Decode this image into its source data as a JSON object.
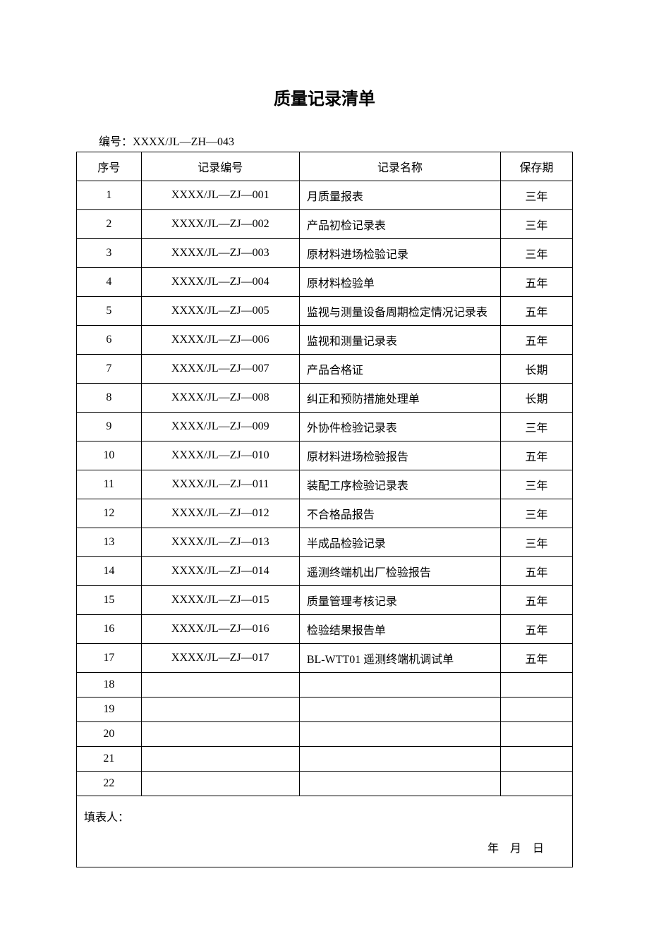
{
  "title": "质量记录清单",
  "doc_number_label": "编号：",
  "doc_number": "XXXX/JL—ZH—043",
  "columns": {
    "seq": "序号",
    "code": "记录编号",
    "name": "记录名称",
    "period": "保存期"
  },
  "rows": [
    {
      "seq": "1",
      "code": "XXXX/JL—ZJ—001",
      "name": "月质量报表",
      "period": "三年"
    },
    {
      "seq": "2",
      "code": "XXXX/JL—ZJ—002",
      "name": "产品初检记录表",
      "period": "三年"
    },
    {
      "seq": "3",
      "code": "XXXX/JL—ZJ—003",
      "name": "原材料进场检验记录",
      "period": "三年"
    },
    {
      "seq": "4",
      "code": "XXXX/JL—ZJ—004",
      "name": "原材料检验单",
      "period": "五年"
    },
    {
      "seq": "5",
      "code": "XXXX/JL—ZJ—005",
      "name": "监视与测量设备周期检定情况记录表",
      "period": "五年"
    },
    {
      "seq": "6",
      "code": "XXXX/JL—ZJ—006",
      "name": "监视和测量记录表",
      "period": "五年"
    },
    {
      "seq": "7",
      "code": "XXXX/JL—ZJ—007",
      "name": "产品合格证",
      "period": "长期"
    },
    {
      "seq": "8",
      "code": "XXXX/JL—ZJ—008",
      "name": "纠正和预防措施处理单",
      "period": "长期"
    },
    {
      "seq": "9",
      "code": "XXXX/JL—ZJ—009",
      "name": "外协件检验记录表",
      "period": "三年"
    },
    {
      "seq": "10",
      "code": "XXXX/JL—ZJ—010",
      "name": "原材料进场检验报告",
      "period": "五年"
    },
    {
      "seq": "11",
      "code": "XXXX/JL—ZJ—011",
      "name": "装配工序检验记录表",
      "period": "三年"
    },
    {
      "seq": "12",
      "code": "XXXX/JL—ZJ—012",
      "name": "不合格品报告",
      "period": "三年"
    },
    {
      "seq": "13",
      "code": "XXXX/JL—ZJ—013",
      "name": "半成品检验记录",
      "period": "三年"
    },
    {
      "seq": "14",
      "code": "XXXX/JL—ZJ—014",
      "name": "遥测终端机出厂检验报告",
      "period": "五年"
    },
    {
      "seq": "15",
      "code": "XXXX/JL—ZJ—015",
      "name": "质量管理考核记录",
      "period": "五年"
    },
    {
      "seq": "16",
      "code": "XXXX/JL—ZJ—016",
      "name": "检验结果报告单",
      "period": "五年"
    },
    {
      "seq": "17",
      "code": "XXXX/JL—ZJ—017",
      "name": "BL-WTT01 遥测终端机调试单",
      "period": "五年"
    },
    {
      "seq": "18",
      "code": "",
      "name": "",
      "period": ""
    },
    {
      "seq": "19",
      "code": "",
      "name": "",
      "period": ""
    },
    {
      "seq": "20",
      "code": "",
      "name": "",
      "period": ""
    },
    {
      "seq": "21",
      "code": "",
      "name": "",
      "period": ""
    },
    {
      "seq": "22",
      "code": "",
      "name": "",
      "period": ""
    }
  ],
  "footer": {
    "filled_by_label": "填表人：",
    "date_label": "年 月 日"
  },
  "styling": {
    "background_color": "#ffffff",
    "border_color": "#000000",
    "text_color": "#000000",
    "title_fontsize": 24,
    "body_fontsize": 16,
    "col_widths": {
      "seq": 90,
      "code": 220,
      "name": 280,
      "period": 100
    },
    "alignment": {
      "seq": "center",
      "code": "center",
      "name": "left",
      "period": "center"
    }
  }
}
